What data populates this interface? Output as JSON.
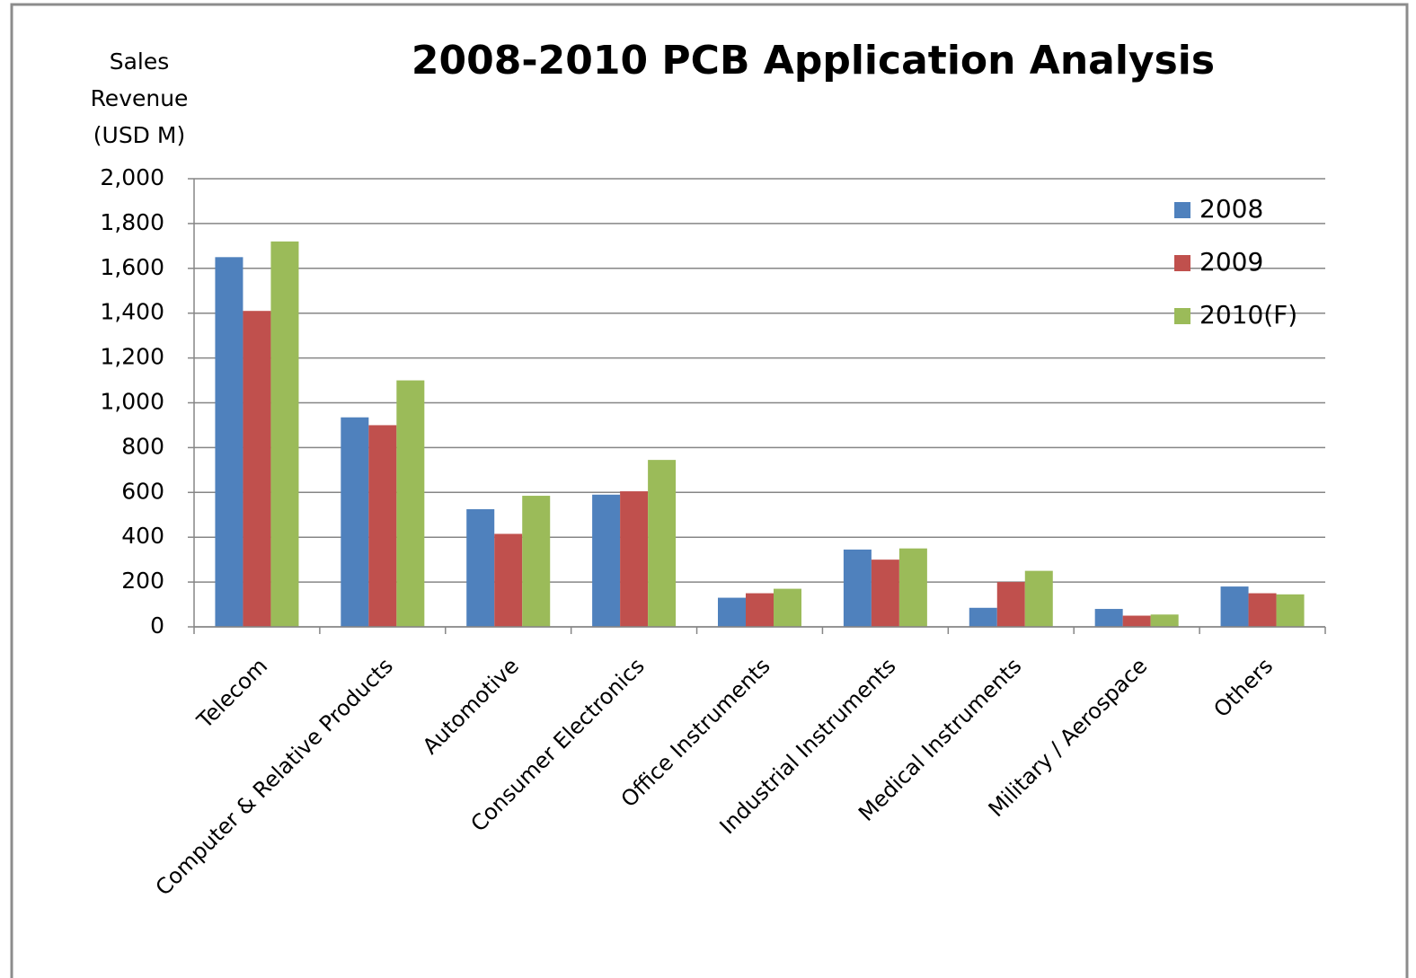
{
  "chart_data": {
    "type": "bar",
    "title": "2008-2010 PCB Application Analysis",
    "y_label": "Sales Revenue (USD M)",
    "categories": [
      "Telecom",
      "Computer & Relative Products",
      "Automotive",
      "Consumer Electronics",
      "Office Instruments",
      "Industrial Instruments",
      "Medical Instruments",
      "Military / Aerospace",
      "Others"
    ],
    "series": [
      {
        "name": "2008",
        "color": "#4f81bd",
        "values": [
          1650,
          935,
          525,
          590,
          130,
          345,
          85,
          80,
          180
        ]
      },
      {
        "name": "2009",
        "color": "#c0504d",
        "values": [
          1410,
          900,
          415,
          605,
          150,
          300,
          200,
          50,
          150
        ]
      },
      {
        "name": "2010(F)",
        "color": "#9bbb59",
        "values": [
          1720,
          1100,
          585,
          745,
          170,
          350,
          250,
          55,
          145
        ]
      }
    ],
    "ylim": [
      0,
      2000
    ],
    "yticks": [
      0,
      200,
      400,
      600,
      800,
      {
        "value": 1000,
        "label": "1,000"
      },
      {
        "value": 1200,
        "label": "1,200"
      },
      {
        "value": 1400,
        "label": "1,400"
      },
      {
        "value": 1600,
        "label": "1,600"
      },
      {
        "value": 1800,
        "label": "1,800"
      },
      {
        "value": 2000,
        "label": "2,000"
      }
    ],
    "grid": true,
    "legend": "top-right"
  }
}
